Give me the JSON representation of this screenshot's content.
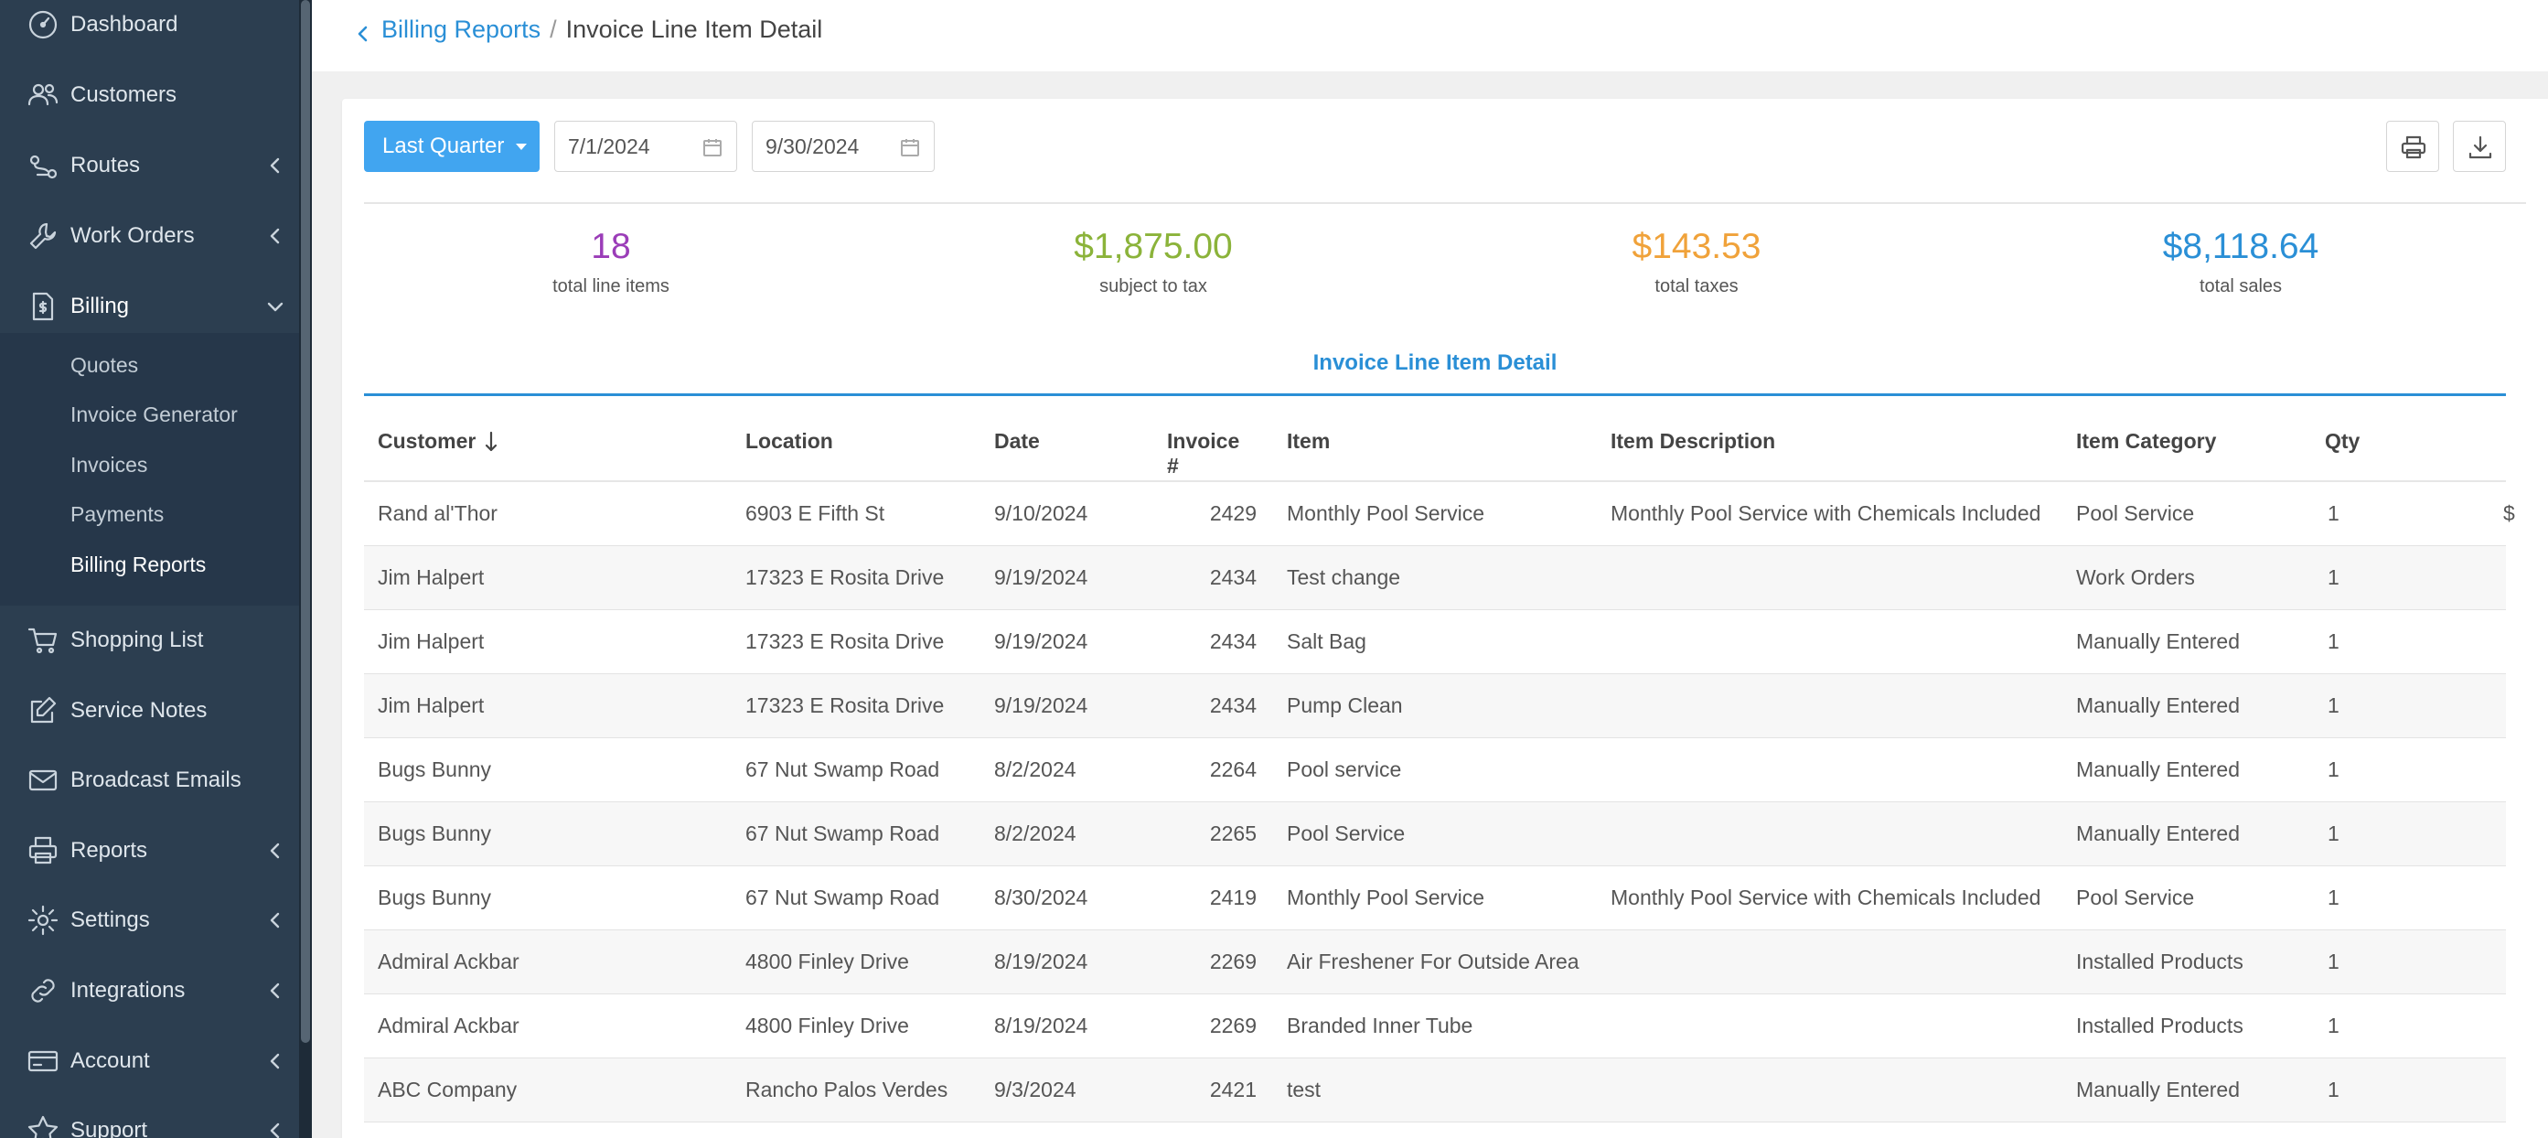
{
  "sidebar": {
    "items": [
      {
        "label": "Dashboard",
        "icon": "dashboard-icon",
        "caret": false
      },
      {
        "label": "Customers",
        "icon": "users-icon",
        "caret": false
      },
      {
        "label": "Routes",
        "icon": "route-icon",
        "caret": true
      },
      {
        "label": "Work Orders",
        "icon": "wrench-icon",
        "caret": true
      },
      {
        "label": "Billing",
        "icon": "billing-icon",
        "caret": true,
        "expanded": true
      },
      {
        "label": "Shopping List",
        "icon": "cart-icon",
        "caret": false
      },
      {
        "label": "Service Notes",
        "icon": "edit-icon",
        "caret": false
      },
      {
        "label": "Broadcast Emails",
        "icon": "mail-icon",
        "caret": false
      },
      {
        "label": "Reports",
        "icon": "printer-icon",
        "caret": true
      },
      {
        "label": "Settings",
        "icon": "gear-icon",
        "caret": true
      },
      {
        "label": "Integrations",
        "icon": "link-icon",
        "caret": true
      },
      {
        "label": "Account",
        "icon": "card-icon",
        "caret": true
      },
      {
        "label": "Support",
        "icon": "star-icon",
        "caret": true
      }
    ],
    "billing_sub": [
      "Quotes",
      "Invoice Generator",
      "Invoices",
      "Payments",
      "Billing Reports"
    ],
    "billing_sub_active": "Billing Reports"
  },
  "breadcrumb": {
    "parent": "Billing Reports",
    "separator": "/",
    "current": "Invoice Line Item Detail"
  },
  "filters": {
    "range_label": "Last Quarter",
    "start_date": "7/1/2024",
    "end_date": "9/30/2024"
  },
  "toolbar": {
    "print_icon": "printer-icon",
    "download_icon": "download-icon"
  },
  "stats": [
    {
      "value": "18",
      "label": "total line items",
      "color": "#9b3db8"
    },
    {
      "value": "$1,875.00",
      "label": "subject to tax",
      "color": "#8bb33a"
    },
    {
      "value": "$143.53",
      "label": "total taxes",
      "color": "#f0a23a"
    },
    {
      "value": "$8,118.64",
      "label": "total sales",
      "color": "#2a8fd6"
    }
  ],
  "section_title": "Invoice Line Item Detail",
  "table": {
    "columns": [
      "Customer",
      "Location",
      "Date",
      "Invoice #",
      "Item",
      "Item Description",
      "Item Category",
      "Qty"
    ],
    "sort_column": "Customer",
    "rows": [
      {
        "customer": "Rand al'Thor",
        "location": "6903 E Fifth St",
        "date": "9/10/2024",
        "invoice": "2429",
        "item": "Monthly Pool Service",
        "description": "Monthly Pool Service with Chemicals Included",
        "category": "Pool Service",
        "qty": "1",
        "clip": "$"
      },
      {
        "customer": "Jim Halpert",
        "location": "17323 E Rosita Drive",
        "date": "9/19/2024",
        "invoice": "2434",
        "item": "Test change",
        "description": "",
        "category": "Work Orders",
        "qty": "1",
        "clip": ""
      },
      {
        "customer": "Jim Halpert",
        "location": "17323 E Rosita Drive",
        "date": "9/19/2024",
        "invoice": "2434",
        "item": "Salt Bag",
        "description": "",
        "category": "Manually Entered",
        "qty": "1",
        "clip": ""
      },
      {
        "customer": "Jim Halpert",
        "location": "17323 E Rosita Drive",
        "date": "9/19/2024",
        "invoice": "2434",
        "item": "Pump Clean",
        "description": "",
        "category": "Manually Entered",
        "qty": "1",
        "clip": ""
      },
      {
        "customer": "Bugs Bunny",
        "location": "67 Nut Swamp Road",
        "date": "8/2/2024",
        "invoice": "2264",
        "item": "Pool service",
        "description": "",
        "category": "Manually Entered",
        "qty": "1",
        "clip": ""
      },
      {
        "customer": "Bugs Bunny",
        "location": "67 Nut Swamp Road",
        "date": "8/2/2024",
        "invoice": "2265",
        "item": "Pool Service",
        "description": "",
        "category": "Manually Entered",
        "qty": "1",
        "clip": ""
      },
      {
        "customer": "Bugs Bunny",
        "location": "67 Nut Swamp Road",
        "date": "8/30/2024",
        "invoice": "2419",
        "item": "Monthly Pool Service",
        "description": "Monthly Pool Service with Chemicals Included",
        "category": "Pool Service",
        "qty": "1",
        "clip": ""
      },
      {
        "customer": "Admiral Ackbar",
        "location": "4800 Finley Drive",
        "date": "8/19/2024",
        "invoice": "2269",
        "item": "Air Freshener For Outside Area",
        "description": "",
        "category": "Installed Products",
        "qty": "1",
        "clip": ""
      },
      {
        "customer": "Admiral Ackbar",
        "location": "4800 Finley Drive",
        "date": "8/19/2024",
        "invoice": "2269",
        "item": "Branded Inner Tube",
        "description": "",
        "category": "Installed Products",
        "qty": "1",
        "clip": ""
      },
      {
        "customer": "ABC Company",
        "location": "Rancho Palos Verdes",
        "date": "9/3/2024",
        "invoice": "2421",
        "item": "test",
        "description": "",
        "category": "Manually Entered",
        "qty": "1",
        "clip": ""
      }
    ]
  }
}
